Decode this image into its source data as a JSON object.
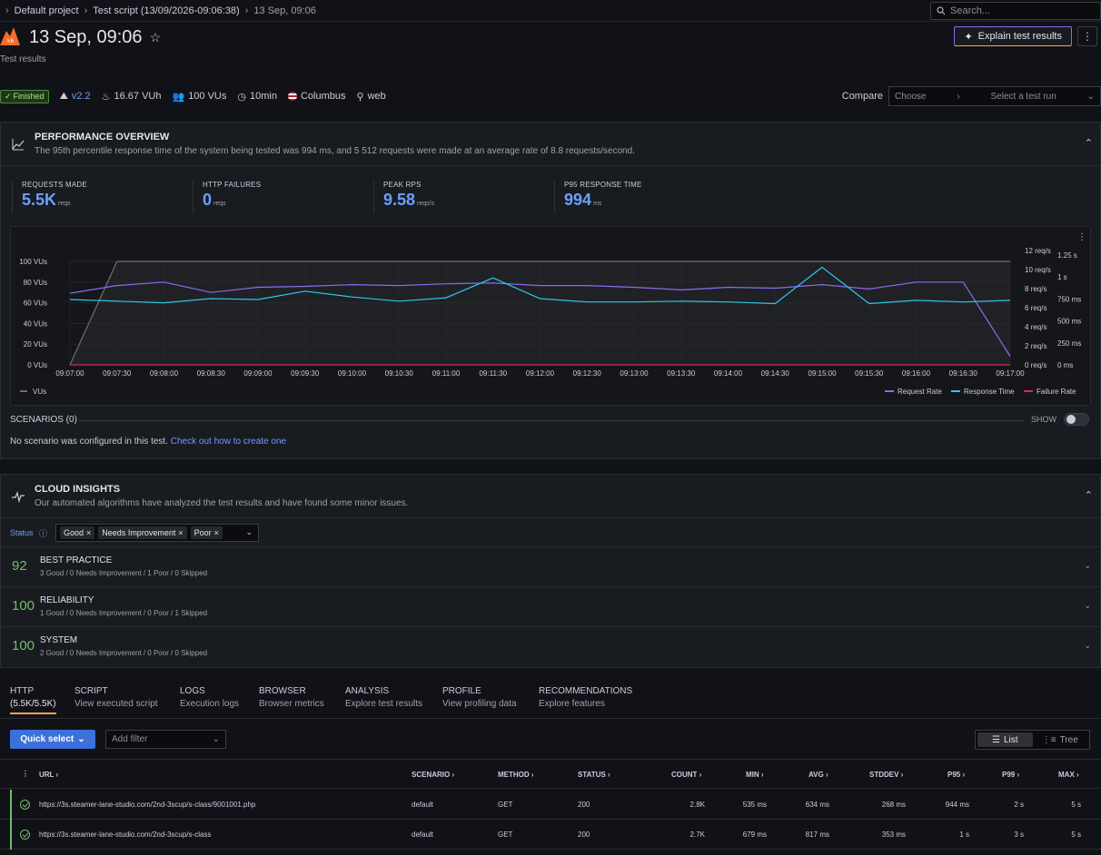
{
  "breadcrumb": {
    "project": "Default project",
    "script": "Test script (13/09/2026-09:06:38)",
    "run": "13 Sep, 09:06"
  },
  "search": {
    "placeholder": "Search..."
  },
  "header": {
    "title": "13 Sep, 09:06",
    "subtitle": "Test results",
    "explain_label": "Explain test results"
  },
  "meta": {
    "status": "Finished",
    "version": "v2.2",
    "vuh": "16.67 VUh",
    "vus": "100 VUs",
    "duration": "10min",
    "location": "Columbus",
    "browser": "web"
  },
  "compare": {
    "label": "Compare",
    "choose": "Choose",
    "select": "Select a test run"
  },
  "performance": {
    "heading": "PERFORMANCE OVERVIEW",
    "description": "The 95th percentile response time of the system being tested was 994 ms, and 5 512 requests were made at an average rate of 8.8 requests/second.",
    "stats": [
      {
        "label": "REQUESTS MADE",
        "value": "5.5K",
        "unit": "reqs"
      },
      {
        "label": "HTTP FAILURES",
        "value": "0",
        "unit": "reqs"
      },
      {
        "label": "PEAK RPS",
        "value": "9.58",
        "unit": "reqs/s"
      },
      {
        "label": "P95 RESPONSE TIME",
        "value": "994",
        "unit": "ms"
      }
    ]
  },
  "chart_data": {
    "type": "line",
    "x": [
      "09:07:00",
      "09:07:30",
      "09:08:00",
      "09:08:30",
      "09:09:00",
      "09:09:30",
      "09:10:00",
      "09:10:30",
      "09:11:00",
      "09:11:30",
      "09:12:00",
      "09:12:30",
      "09:13:00",
      "09:13:30",
      "09:14:00",
      "09:14:30",
      "09:15:00",
      "09:15:30",
      "09:16:00",
      "09:16:30",
      "09:17:00"
    ],
    "y_left_ticks": [
      "0 VUs",
      "20 VUs",
      "40 VUs",
      "60 VUs",
      "80 VUs",
      "100 VUs"
    ],
    "y_right1_ticks": [
      "0 req/s",
      "2 req/s",
      "4 req/s",
      "6 req/s",
      "8 req/s",
      "10 req/s",
      "12 req/s"
    ],
    "y_right2_ticks": [
      "0 ms",
      "250 ms",
      "500 ms",
      "750 ms",
      "1 s",
      "1.25 s"
    ],
    "legend_left": "VUs",
    "series": [
      {
        "name": "VUs",
        "color": "#6e6f74",
        "axis": "left",
        "values": [
          0,
          100,
          100,
          100,
          100,
          100,
          100,
          100,
          100,
          100,
          100,
          100,
          100,
          100,
          100,
          100,
          100,
          100,
          100,
          100,
          100
        ]
      },
      {
        "name": "Request Rate",
        "color": "#8a6cf0",
        "axis": "right1",
        "values": [
          8.3,
          9.2,
          9.6,
          8.4,
          9.0,
          9.1,
          9.3,
          9.2,
          9.4,
          9.5,
          9.2,
          9.2,
          9.0,
          8.7,
          9.0,
          8.9,
          9.3,
          8.8,
          9.6,
          9.6,
          1.0
        ]
      },
      {
        "name": "Response Time",
        "color": "#2ec6e8",
        "axis": "right2",
        "values": [
          790,
          770,
          750,
          800,
          790,
          890,
          820,
          770,
          810,
          1050,
          800,
          760,
          760,
          770,
          760,
          740,
          1180,
          740,
          780,
          760,
          780
        ]
      },
      {
        "name": "Failure Rate",
        "color": "#e0245e",
        "axis": "right1",
        "values": [
          0,
          0,
          0,
          0,
          0,
          0,
          0,
          0,
          0,
          0,
          0,
          0,
          0,
          0,
          0,
          0,
          0,
          0,
          0,
          0,
          0
        ]
      }
    ]
  },
  "scenarios": {
    "label": "SCENARIOS (0)",
    "show": "SHOW",
    "note": "No scenario was configured in this test.",
    "link": "Check out how to create one"
  },
  "insights": {
    "heading": "CLOUD INSIGHTS",
    "description": "Our automated algorithms have analyzed the test results and have found some minor issues.",
    "status_label": "Status",
    "chips": [
      "Good",
      "Needs Improvement",
      "Poor"
    ],
    "items": [
      {
        "score": "92",
        "name": "BEST PRACTICE",
        "summary": "3 Good / 0 Needs Improvement / 1 Poor / 0 Skipped"
      },
      {
        "score": "100",
        "name": "RELIABILITY",
        "summary": "1 Good / 0 Needs Improvement / 0 Poor / 1 Skipped"
      },
      {
        "score": "100",
        "name": "SYSTEM",
        "summary": "2 Good / 0 Needs Improvement / 0 Poor / 0 Skipped"
      }
    ]
  },
  "tabs": [
    {
      "title": "HTTP",
      "sub": "(5.5K/5.5K)"
    },
    {
      "title": "SCRIPT",
      "sub": "View executed script"
    },
    {
      "title": "LOGS",
      "sub": "Execution logs"
    },
    {
      "title": "BROWSER",
      "sub": "Browser metrics"
    },
    {
      "title": "ANALYSIS",
      "sub": "Explore test results"
    },
    {
      "title": "PROFILE",
      "sub": "View profiling data"
    },
    {
      "title": "RECOMMENDATIONS",
      "sub": "Explore features"
    }
  ],
  "toolbar": {
    "quick_select": "Quick select",
    "add_filter": "Add filter",
    "list": "List",
    "tree": "Tree"
  },
  "table": {
    "headers": [
      "URL",
      "SCENARIO",
      "METHOD",
      "STATUS",
      "COUNT",
      "MIN",
      "AVG",
      "STDDEV",
      "P95",
      "P99",
      "MAX"
    ],
    "rows": [
      [
        "https://3s.steamer-lane-studio.com/2nd-3scup/s-class/9001001.php",
        "default",
        "GET",
        "200",
        "2.8K",
        "535 ms",
        "634 ms",
        "268 ms",
        "944 ms",
        "2 s",
        "5 s"
      ],
      [
        "https://3s.steamer-lane-studio.com/2nd-3scup/s-class",
        "default",
        "GET",
        "200",
        "2.7K",
        "679 ms",
        "817 ms",
        "353 ms",
        "1 s",
        "3 s",
        "5 s"
      ]
    ]
  }
}
